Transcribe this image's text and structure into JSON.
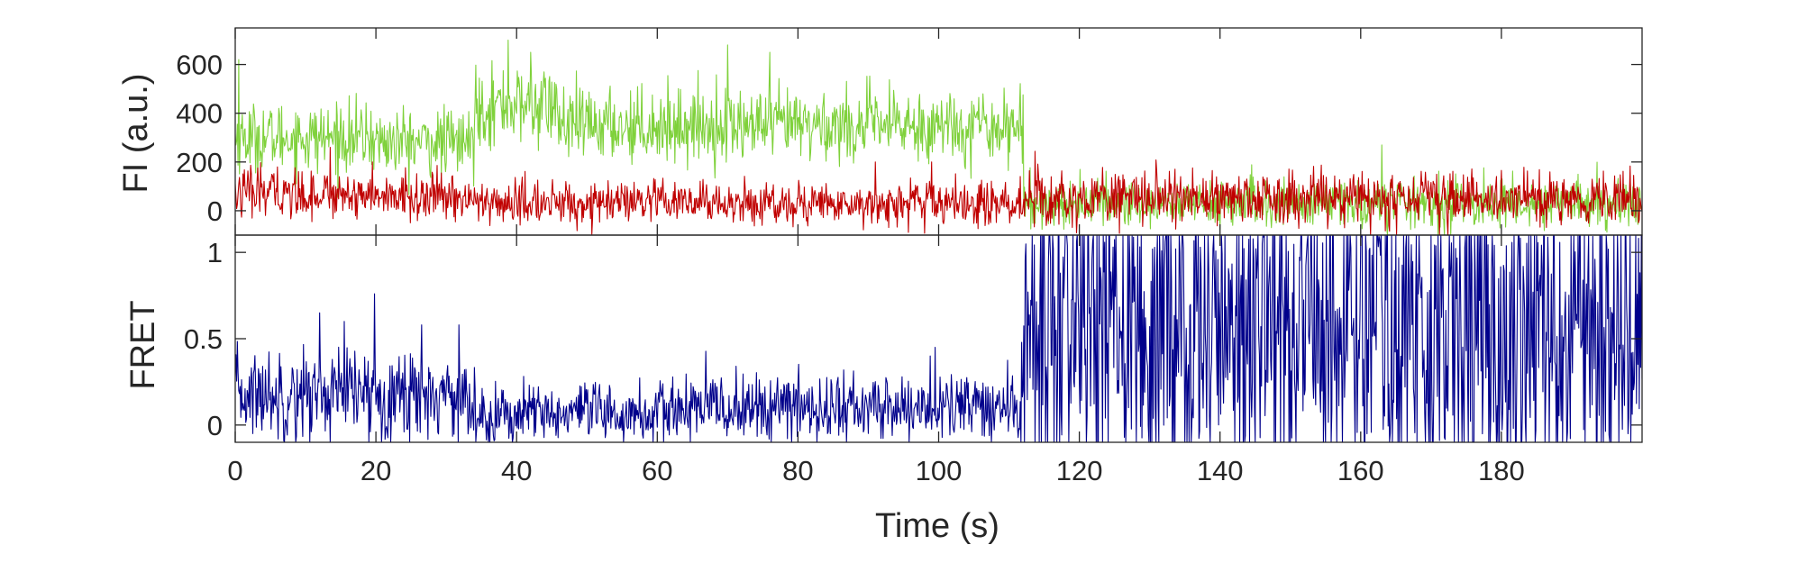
{
  "chart_data": [
    {
      "type": "line",
      "panel": "fluorescence",
      "title": "",
      "xlabel": "",
      "ylabel": "FI (a.u.)",
      "xlim": [
        0,
        200
      ],
      "ylim": [
        -100,
        750
      ],
      "x_ticks": [
        0,
        20,
        40,
        60,
        80,
        100,
        120,
        140,
        160,
        180
      ],
      "y_ticks": [
        0,
        200,
        400,
        600
      ],
      "y_tick_labels": [
        "0",
        "200",
        "400",
        "600"
      ],
      "grid": false,
      "series": [
        {
          "color": "#7fd13b",
          "segments": [
            {
              "x_start": 0,
              "x_end": 8,
              "mean": 300,
              "noise": 70
            },
            {
              "x_start": 8,
              "x_end": 20,
              "mean": 300,
              "noise": 70
            },
            {
              "x_start": 20,
              "x_end": 34,
              "mean": 280,
              "noise": 70
            },
            {
              "x_start": 34,
              "x_end": 46,
              "mean": 430,
              "noise": 80
            },
            {
              "x_start": 46,
              "x_end": 112,
              "mean": 350,
              "noise": 75
            },
            {
              "x_start": 112,
              "x_end": 200,
              "mean": 30,
              "noise": 50
            }
          ],
          "peaks": [
            [
              0.5,
              620
            ],
            [
              38.8,
              700
            ],
            [
              42,
              650
            ],
            [
              70,
              680
            ],
            [
              76,
              650
            ],
            [
              163,
              270
            ]
          ]
        },
        {
          "color": "#c00000",
          "segments": [
            {
              "x_start": 0,
              "x_end": 20,
              "mean": 70,
              "noise": 50
            },
            {
              "x_start": 20,
              "x_end": 34,
              "mean": 55,
              "noise": 45
            },
            {
              "x_start": 34,
              "x_end": 112,
              "mean": 30,
              "noise": 45
            },
            {
              "x_start": 112,
              "x_end": 200,
              "mean": 50,
              "noise": 55
            }
          ],
          "peaks": [
            [
              6,
              180
            ],
            [
              13.5,
              260
            ],
            [
              19.5,
              200
            ],
            [
              91,
              200
            ],
            [
              99,
              200
            ]
          ]
        }
      ]
    },
    {
      "type": "line",
      "panel": "fret",
      "title": "",
      "xlabel": "Time (s)",
      "ylabel": "FRET",
      "xlim": [
        0,
        200
      ],
      "ylim": [
        -0.1,
        1.1
      ],
      "x_ticks": [
        0,
        20,
        40,
        60,
        80,
        100,
        120,
        140,
        160,
        180
      ],
      "x_tick_labels": [
        "0",
        "20",
        "40",
        "60",
        "80",
        "100",
        "120",
        "140",
        "160",
        "180"
      ],
      "y_ticks": [
        0,
        0.5,
        1
      ],
      "y_tick_labels": [
        "0",
        "0.5",
        "1"
      ],
      "grid": false,
      "series": [
        {
          "color": "#00008b",
          "segments": [
            {
              "x_start": 0,
              "x_end": 33,
              "mean": 0.18,
              "noise": 0.13
            },
            {
              "x_start": 33,
              "x_end": 62,
              "mean": 0.06,
              "noise": 0.09
            },
            {
              "x_start": 62,
              "x_end": 112,
              "mean": 0.1,
              "noise": 0.1
            },
            {
              "x_start": 112,
              "x_end": 200,
              "mean": 0.6,
              "noise": 0.55
            }
          ],
          "peaks": [
            [
              12,
              0.65
            ],
            [
              19.8,
              0.76
            ],
            [
              15.5,
              0.6
            ],
            [
              26.5,
              0.58
            ],
            [
              31.8,
              0.58
            ],
            [
              99.5,
              0.45
            ]
          ]
        }
      ]
    }
  ]
}
